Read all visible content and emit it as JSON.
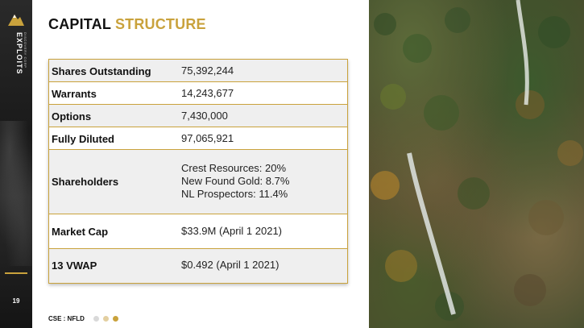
{
  "sidebar": {
    "brand_name": "EXPLOITS",
    "brand_sub": "DISCOVERY CORP",
    "page_number": "19"
  },
  "header": {
    "title_part1": "CAPITAL",
    "title_part2": "STRUCTURE"
  },
  "table": {
    "rows": [
      {
        "label": "Shares Outstanding",
        "value": "75,392,244"
      },
      {
        "label": "Warrants",
        "value": "14,243,677"
      },
      {
        "label": "Options",
        "value": "7,430,000"
      },
      {
        "label": "Fully Diluted",
        "value": "97,065,921"
      },
      {
        "label": "Shareholders",
        "lines": [
          "Crest Resources: 20%",
          "New Found Gold: 8.7%",
          "NL Prospectors: 11.4%"
        ]
      },
      {
        "label": "Market Cap",
        "value": "$33.9M (April 1 2021)"
      },
      {
        "label": "13 VWAP",
        "value": "$0.492 (April 1 2021)"
      }
    ]
  },
  "footer": {
    "ticker": "CSE : NFLD",
    "dot_colors": [
      "#d9d9d9",
      "#e3cfa0",
      "#c9a23c"
    ]
  },
  "colors": {
    "accent_gold": "#c9a23c",
    "row_shade": "#efefef"
  },
  "icons": {
    "logo": "mountain-logo-icon"
  }
}
